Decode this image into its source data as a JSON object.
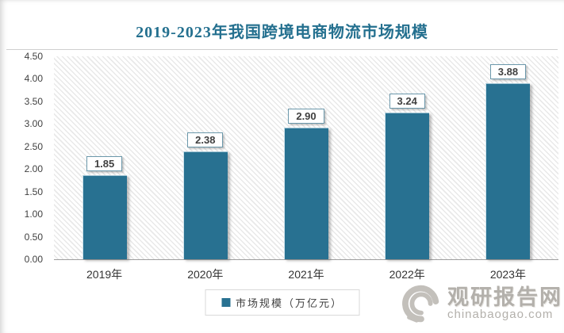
{
  "title": "2019-2023年我国跨境电商物流市场规模",
  "chart_data": {
    "type": "bar",
    "title": "2019-2023年我国跨境电商物流市场规模",
    "categories": [
      "2019年",
      "2020年",
      "2021年",
      "2022年",
      "2023年"
    ],
    "values": [
      1.85,
      2.38,
      2.9,
      3.24,
      3.88
    ],
    "value_labels": [
      "1.85",
      "2.38",
      "2.90",
      "3.24",
      "3.88"
    ],
    "series_name": "市场规模（万亿元）",
    "xlabel": "",
    "ylabel": "",
    "ylim": [
      0,
      4.5
    ],
    "ytick_step": 0.5,
    "yticks": [
      "4.50",
      "4.00",
      "3.50",
      "3.00",
      "2.50",
      "2.00",
      "1.50",
      "1.00",
      "0.50",
      "0.00"
    ],
    "grid": false,
    "legend_position": "bottom-center",
    "bar_color": "#287191",
    "hatch_background": true
  },
  "legend": {
    "label": "市场规模（万亿元）"
  },
  "watermark": {
    "site_name": "观研报告网",
    "site_url": "chinabaogao.com"
  },
  "colors": {
    "bar": "#287191",
    "title_text": "#24708f",
    "axis_text": "#404040",
    "axis_line": "#9e9e9e",
    "value_box_border": "#6b98ab",
    "watermark_gray": "#b3b0ab"
  }
}
